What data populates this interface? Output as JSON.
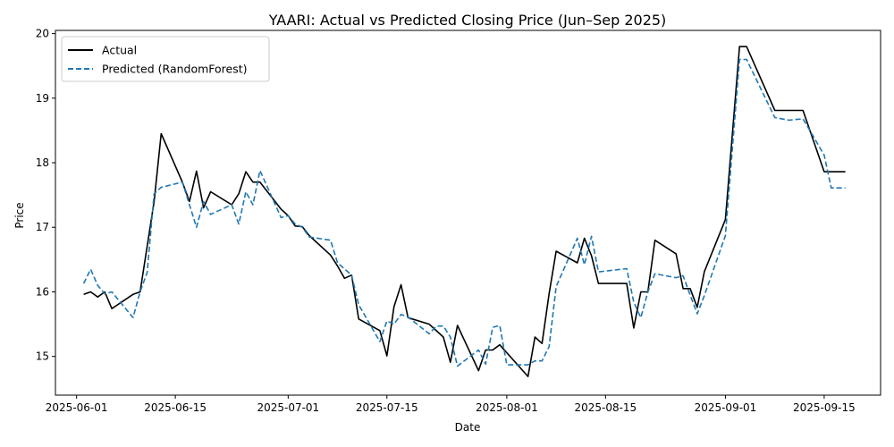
{
  "colors": {
    "actual": "#000000",
    "predicted": "#1f77b4",
    "background": "#ffffff",
    "axes": "#000000",
    "legend_border": "#cccccc"
  },
  "chart_data": {
    "type": "line",
    "title": "YAARI: Actual vs Predicted Closing Price (Jun–Sep 2025)",
    "xlabel": "Date",
    "ylabel": "Price",
    "xlim": [
      "2025-05-29",
      "2025-09-23"
    ],
    "ylim": [
      14.4,
      20.05
    ],
    "x_ticks": [
      "2025-06-01",
      "2025-06-15",
      "2025-07-01",
      "2025-07-15",
      "2025-08-01",
      "2025-08-15",
      "2025-09-01",
      "2025-09-15"
    ],
    "y_ticks": [
      15,
      16,
      17,
      18,
      19,
      20
    ],
    "grid": false,
    "legend_position": "upper-left",
    "series": [
      {
        "name": "Actual",
        "style": "solid",
        "color": "#000000",
        "points": [
          [
            "2025-06-02",
            15.96
          ],
          [
            "2025-06-03",
            16.0
          ],
          [
            "2025-06-04",
            15.92
          ],
          [
            "2025-06-05",
            16.0
          ],
          [
            "2025-06-06",
            15.74
          ],
          [
            "2025-06-09",
            15.96
          ],
          [
            "2025-06-10",
            16.0
          ],
          [
            "2025-06-12",
            17.4
          ],
          [
            "2025-06-13",
            18.45
          ],
          [
            "2025-06-16",
            17.7
          ],
          [
            "2025-06-17",
            17.4
          ],
          [
            "2025-06-18",
            17.87
          ],
          [
            "2025-06-19",
            17.3
          ],
          [
            "2025-06-20",
            17.55
          ],
          [
            "2025-06-23",
            17.35
          ],
          [
            "2025-06-24",
            17.52
          ],
          [
            "2025-06-25",
            17.86
          ],
          [
            "2025-06-26",
            17.7
          ],
          [
            "2025-06-27",
            17.7
          ],
          [
            "2025-06-30",
            17.28
          ],
          [
            "2025-07-01",
            17.18
          ],
          [
            "2025-07-02",
            17.02
          ],
          [
            "2025-07-03",
            17.01
          ],
          [
            "2025-07-04",
            16.87
          ],
          [
            "2025-07-07",
            16.57
          ],
          [
            "2025-07-08",
            16.4
          ],
          [
            "2025-07-09",
            16.21
          ],
          [
            "2025-07-10",
            16.26
          ],
          [
            "2025-07-11",
            15.58
          ],
          [
            "2025-07-14",
            15.4
          ],
          [
            "2025-07-15",
            15.01
          ],
          [
            "2025-07-16",
            15.77
          ],
          [
            "2025-07-17",
            16.11
          ],
          [
            "2025-07-18",
            15.6
          ],
          [
            "2025-07-21",
            15.5
          ],
          [
            "2025-07-23",
            15.3
          ],
          [
            "2025-07-24",
            14.91
          ],
          [
            "2025-07-25",
            15.48
          ],
          [
            "2025-07-28",
            14.78
          ],
          [
            "2025-07-29",
            15.1
          ],
          [
            "2025-07-30",
            15.1
          ],
          [
            "2025-07-31",
            15.18
          ],
          [
            "2025-08-04",
            14.69
          ],
          [
            "2025-08-05",
            15.3
          ],
          [
            "2025-08-06",
            15.2
          ],
          [
            "2025-08-07",
            15.97
          ],
          [
            "2025-08-08",
            16.63
          ],
          [
            "2025-08-11",
            16.45
          ],
          [
            "2025-08-12",
            16.83
          ],
          [
            "2025-08-13",
            16.56
          ],
          [
            "2025-08-14",
            16.13
          ],
          [
            "2025-08-18",
            16.13
          ],
          [
            "2025-08-19",
            15.44
          ],
          [
            "2025-08-20",
            16.0
          ],
          [
            "2025-08-21",
            16.0
          ],
          [
            "2025-08-22",
            16.8
          ],
          [
            "2025-08-25",
            16.59
          ],
          [
            "2025-08-26",
            16.05
          ],
          [
            "2025-08-27",
            16.05
          ],
          [
            "2025-08-28",
            15.76
          ],
          [
            "2025-08-29",
            16.31
          ],
          [
            "2025-09-01",
            17.12
          ],
          [
            "2025-09-03",
            19.8
          ],
          [
            "2025-09-04",
            19.8
          ],
          [
            "2025-09-08",
            18.81
          ],
          [
            "2025-09-12",
            18.81
          ],
          [
            "2025-09-15",
            17.86
          ],
          [
            "2025-09-18",
            17.86
          ]
        ]
      },
      {
        "name": "Predicted (RandomForest)",
        "style": "dashed",
        "color": "#1f77b4",
        "points": [
          [
            "2025-06-02",
            16.13
          ],
          [
            "2025-06-03",
            16.35
          ],
          [
            "2025-06-04",
            16.1
          ],
          [
            "2025-06-05",
            15.97
          ],
          [
            "2025-06-06",
            16.0
          ],
          [
            "2025-06-09",
            15.6
          ],
          [
            "2025-06-10",
            16.0
          ],
          [
            "2025-06-11",
            16.3
          ],
          [
            "2025-06-12",
            17.52
          ],
          [
            "2025-06-13",
            17.62
          ],
          [
            "2025-06-16",
            17.7
          ],
          [
            "2025-06-17",
            17.35
          ],
          [
            "2025-06-18",
            17.0
          ],
          [
            "2025-06-19",
            17.4
          ],
          [
            "2025-06-20",
            17.2
          ],
          [
            "2025-06-23",
            17.35
          ],
          [
            "2025-06-24",
            17.05
          ],
          [
            "2025-06-25",
            17.55
          ],
          [
            "2025-06-26",
            17.35
          ],
          [
            "2025-06-27",
            17.88
          ],
          [
            "2025-06-30",
            17.15
          ],
          [
            "2025-07-01",
            17.18
          ],
          [
            "2025-07-02",
            17.05
          ],
          [
            "2025-07-03",
            17.0
          ],
          [
            "2025-07-04",
            16.85
          ],
          [
            "2025-07-07",
            16.8
          ],
          [
            "2025-07-08",
            16.45
          ],
          [
            "2025-07-10",
            16.26
          ],
          [
            "2025-07-11",
            15.8
          ],
          [
            "2025-07-14",
            15.23
          ],
          [
            "2025-07-15",
            15.55
          ],
          [
            "2025-07-16",
            15.5
          ],
          [
            "2025-07-17",
            15.65
          ],
          [
            "2025-07-18",
            15.61
          ],
          [
            "2025-07-21",
            15.35
          ],
          [
            "2025-07-22",
            15.47
          ],
          [
            "2025-07-23",
            15.47
          ],
          [
            "2025-07-24",
            15.3
          ],
          [
            "2025-07-25",
            14.85
          ],
          [
            "2025-07-28",
            15.1
          ],
          [
            "2025-07-29",
            14.88
          ],
          [
            "2025-07-30",
            15.45
          ],
          [
            "2025-07-31",
            15.48
          ],
          [
            "2025-08-01",
            14.87
          ],
          [
            "2025-08-04",
            14.87
          ],
          [
            "2025-08-05",
            14.93
          ],
          [
            "2025-08-06",
            14.93
          ],
          [
            "2025-08-07",
            15.15
          ],
          [
            "2025-08-08",
            16.08
          ],
          [
            "2025-08-11",
            16.83
          ],
          [
            "2025-08-12",
            16.42
          ],
          [
            "2025-08-13",
            16.86
          ],
          [
            "2025-08-14",
            16.31
          ],
          [
            "2025-08-18",
            16.36
          ],
          [
            "2025-08-19",
            15.84
          ],
          [
            "2025-08-20",
            15.6
          ],
          [
            "2025-08-21",
            16.0
          ],
          [
            "2025-08-22",
            16.28
          ],
          [
            "2025-08-25",
            16.22
          ],
          [
            "2025-08-26",
            16.25
          ],
          [
            "2025-08-27",
            15.95
          ],
          [
            "2025-08-28",
            15.66
          ],
          [
            "2025-08-29",
            15.94
          ],
          [
            "2025-09-01",
            16.87
          ],
          [
            "2025-09-03",
            19.6
          ],
          [
            "2025-09-04",
            19.6
          ],
          [
            "2025-09-08",
            18.7
          ],
          [
            "2025-09-10",
            18.66
          ],
          [
            "2025-09-12",
            18.68
          ],
          [
            "2025-09-15",
            18.12
          ],
          [
            "2025-09-16",
            17.61
          ],
          [
            "2025-09-18",
            17.61
          ]
        ]
      }
    ]
  }
}
